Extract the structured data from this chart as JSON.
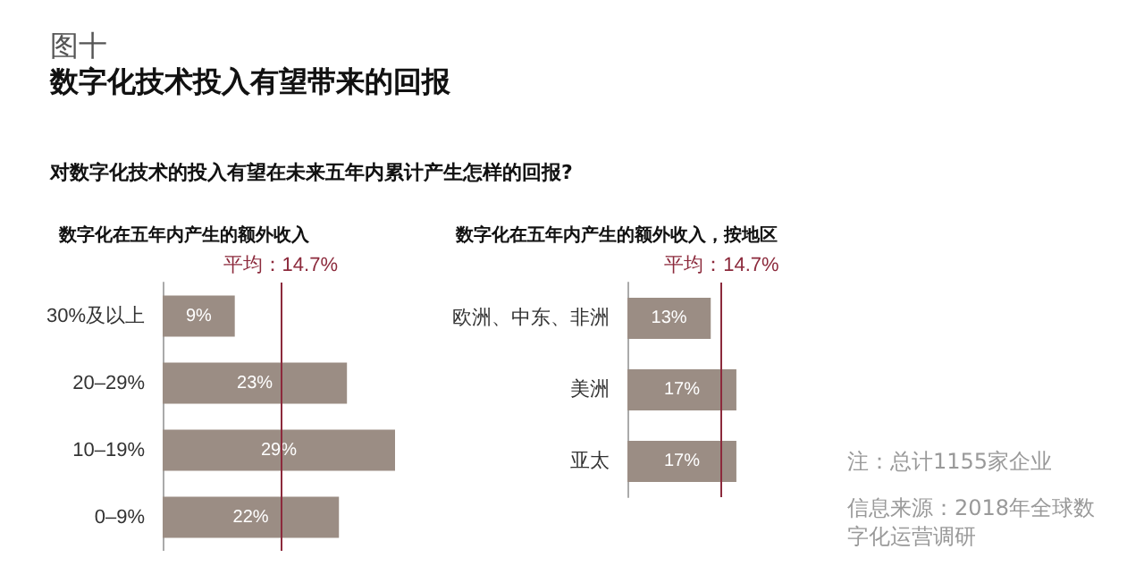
{
  "chart_data": [
    {
      "type": "bar",
      "orientation": "horizontal",
      "title": "数字化在五年内产生的额外收入",
      "categories": [
        "30%及以上",
        "20–29%",
        "10–19%",
        "0–9%"
      ],
      "values": [
        9,
        23,
        29,
        22
      ],
      "value_labels": [
        "9%",
        "23%",
        "29%",
        "22%"
      ],
      "color": "#9b8d84",
      "tick_labels": "y",
      "ref_lines": [
        {
          "axis": "x",
          "value": 14.7,
          "label": "平均：14.7%",
          "color": "#8c2a3c"
        }
      ],
      "annotations": [
        "图十",
        "数字化技术投入有望带来的回报",
        "对数字化技术的投入有望在未来五年内累计产生怎样的回报?"
      ]
    },
    {
      "type": "bar",
      "orientation": "horizontal",
      "title": "数字化在五年内产生的额外收入，按地区",
      "categories": [
        "欧洲、中东、非洲",
        "美洲",
        "亚太"
      ],
      "values": [
        13,
        17,
        17
      ],
      "value_labels": [
        "13%",
        "17%",
        "17%"
      ],
      "color": "#9b8d84",
      "tick_labels": "y",
      "ref_lines": [
        {
          "axis": "x",
          "value": 14.7,
          "label": "平均：14.7%",
          "color": "#8c2a3c"
        }
      ],
      "annotations": [
        "注：总计1155家企业",
        "信息来源：2018年全球数字化运营调研"
      ]
    }
  ]
}
